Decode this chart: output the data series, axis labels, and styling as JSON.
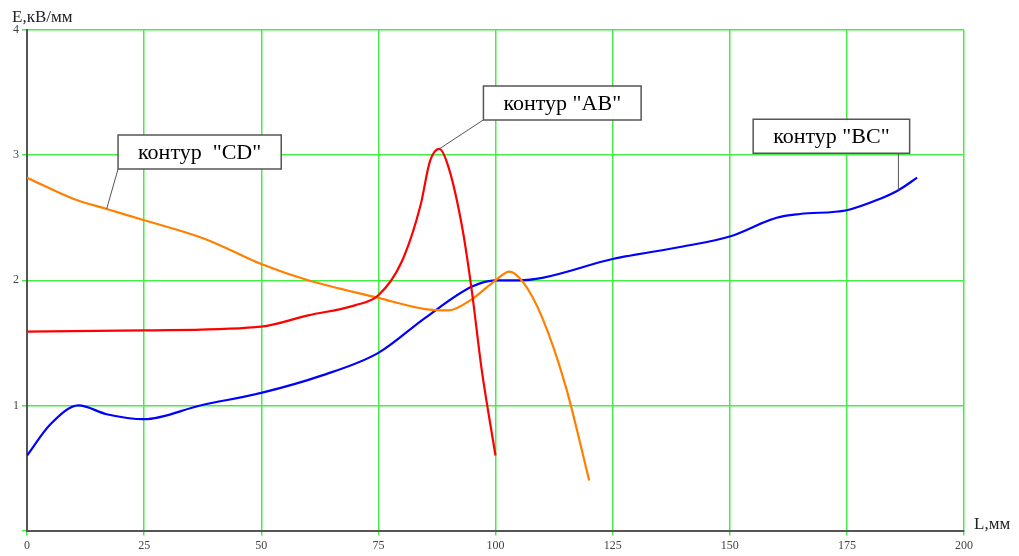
{
  "chart_data": {
    "type": "line",
    "xlabel": "L,мм",
    "ylabel": "E,кВ/мм",
    "xlim": [
      0,
      200
    ],
    "xticks": [
      0,
      25,
      50,
      75,
      100,
      125,
      150,
      175,
      200
    ],
    "ylim": [
      0,
      4
    ],
    "yticks": [
      {
        "value": 0,
        "label": null
      },
      1,
      2,
      3,
      4
    ],
    "grid": true,
    "legend": false,
    "marker": "none",
    "line_style": "solid",
    "series": [
      {
        "name": "контур \"AB\"",
        "color": "#ff0000",
        "x": [
          0,
          25,
          50,
          60,
          70,
          75,
          80,
          84,
          86,
          88,
          90,
          93,
          95,
          97,
          100
        ],
        "values": [
          1.59,
          1.6,
          1.63,
          1.72,
          1.8,
          1.88,
          2.15,
          2.6,
          2.95,
          3.05,
          2.9,
          2.4,
          1.9,
          1.3,
          0.6
        ]
      },
      {
        "name": "контур  \"CD\"",
        "color": "#ff8000",
        "x": [
          0,
          10,
          17,
          25,
          38,
          50,
          60,
          75,
          85,
          90,
          95,
          100,
          103,
          106,
          110,
          115,
          120
        ],
        "values": [
          2.82,
          2.65,
          2.57,
          2.48,
          2.33,
          2.13,
          2.0,
          1.86,
          1.77,
          1.76,
          1.85,
          2.0,
          2.07,
          1.98,
          1.7,
          1.15,
          0.4
        ]
      },
      {
        "name": "контур \"BC\"",
        "color": "#0000ff",
        "x": [
          0,
          5,
          11,
          17,
          25,
          37,
          50,
          63,
          75,
          85,
          95,
          100,
          105,
          110,
          125,
          140,
          150,
          160,
          165,
          175,
          182,
          186,
          190
        ],
        "values": [
          0.6,
          0.85,
          1.0,
          0.93,
          0.89,
          1.0,
          1.1,
          1.24,
          1.42,
          1.7,
          1.95,
          2.0,
          2.0,
          2.02,
          2.17,
          2.27,
          2.35,
          2.5,
          2.53,
          2.56,
          2.65,
          2.72,
          2.82
        ]
      }
    ]
  }
}
